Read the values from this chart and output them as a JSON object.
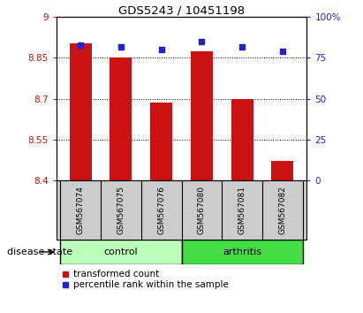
{
  "title": "GDS5243 / 10451198",
  "samples": [
    "GSM567074",
    "GSM567075",
    "GSM567076",
    "GSM567080",
    "GSM567081",
    "GSM567082"
  ],
  "transformed_counts": [
    8.905,
    8.85,
    8.685,
    8.875,
    8.7,
    8.47
  ],
  "percentile_ranks": [
    83,
    82,
    80,
    85,
    82,
    79
  ],
  "ylim_left": [
    8.4,
    9.0
  ],
  "ylim_right": [
    0,
    100
  ],
  "yticks_left": [
    8.4,
    8.55,
    8.7,
    8.85,
    9.0
  ],
  "yticks_right": [
    0,
    25,
    50,
    75,
    100
  ],
  "ytick_labels_left": [
    "8.4",
    "8.55",
    "8.7",
    "8.85",
    "9"
  ],
  "ytick_labels_right": [
    "0",
    "25",
    "50",
    "75",
    "100%"
  ],
  "bar_color": "#cc1111",
  "dot_color": "#2222cc",
  "bar_bottom": 8.4,
  "control_color": "#bbffbb",
  "arthritis_color": "#44dd44",
  "disease_state_label": "disease state",
  "legend_labels": [
    "transformed count",
    "percentile rank within the sample"
  ],
  "bar_width": 0.55,
  "sample_box_color": "#cccccc",
  "n_control": 3,
  "n_arthritis": 3
}
